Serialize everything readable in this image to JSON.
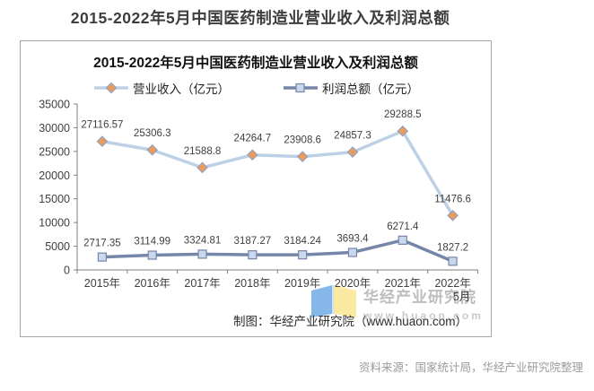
{
  "page_title": "2015-2022年5月中国医药制造业营业收入及利润总额",
  "chart": {
    "title": "2015-2022年5月中国医药制造业营业收入及利润总额",
    "credit": "制图：华经产业研究院（www.huaon.com）",
    "watermark_name": "华经产业研究院",
    "watermark_url": "www.huaon.com"
  },
  "source_note": "资料来源：国家统计局，华经产业研究院整理",
  "chart_data": {
    "type": "line",
    "title": "2015-2022年5月中国医药制造业营业收入及利润总额",
    "categories": [
      "2015年",
      "2016年",
      "2017年",
      "2018年",
      "2019年",
      "2020年",
      "2021年",
      "2022年5月"
    ],
    "x_tick_labels": [
      [
        "2015年"
      ],
      [
        "2016年"
      ],
      [
        "2017年"
      ],
      [
        "2018年"
      ],
      [
        "2019年"
      ],
      [
        "2020年"
      ],
      [
        "2021年"
      ],
      [
        "2022年",
        "5月"
      ]
    ],
    "series": [
      {
        "name": "营业收入（亿元）",
        "values": [
          27116.57,
          25306.3,
          21588.8,
          24264.7,
          23908.6,
          24857.3,
          29288.5,
          11476.6
        ],
        "marker": "diamond",
        "line_color": "#bdd0e6",
        "marker_fill": "#eb9c5c",
        "marker_stroke": "#8fa3c2"
      },
      {
        "name": "利润总额（亿元）",
        "values": [
          2717.35,
          3114.99,
          3324.81,
          3187.27,
          3184.24,
          3693.4,
          6271.4,
          1827.2
        ],
        "marker": "square",
        "line_color": "#7586a8",
        "marker_fill": "#c9d8ec",
        "marker_stroke": "#7586a8"
      }
    ],
    "ylim": [
      0,
      35000
    ],
    "y_ticks": [
      0,
      5000,
      10000,
      15000,
      20000,
      25000,
      30000,
      35000
    ],
    "legend_position": "top",
    "grid": false,
    "axis_color": "#7f7f7f",
    "label_color": "#3f3f3f"
  }
}
